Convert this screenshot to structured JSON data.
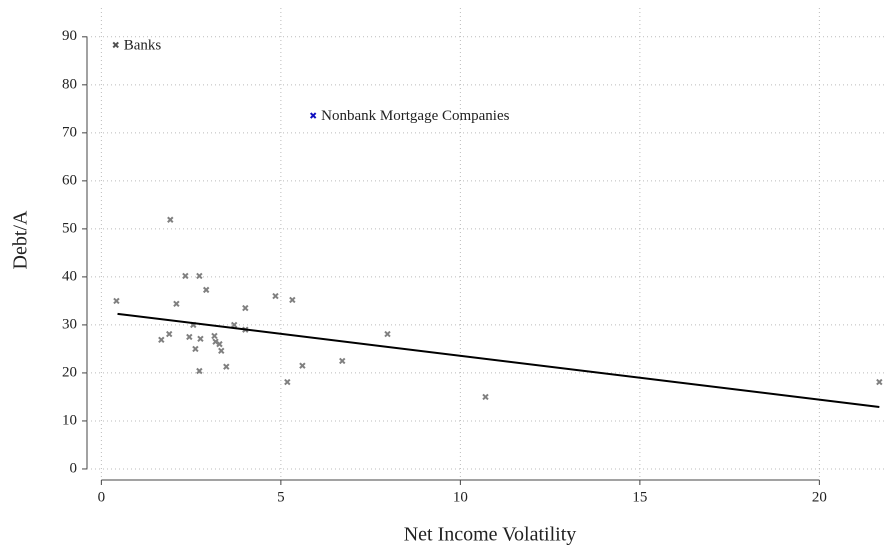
{
  "chart_data": {
    "type": "scatter",
    "x_label": "Net Income Volatility",
    "y_label": "Debt/A",
    "xlim": [
      -0.4,
      21.8
    ],
    "ylim": [
      -2.3,
      96
    ],
    "xticks": [
      0,
      5,
      10,
      15,
      20
    ],
    "yticks": [
      0,
      10,
      20,
      30,
      40,
      50,
      60,
      70,
      80,
      90
    ],
    "grid": true,
    "series": [
      {
        "name": "Banks",
        "color": "#505050",
        "x": [
          0.4
        ],
        "values": [
          88.3
        ]
      },
      {
        "name": "Nonbank Mortgage Companies",
        "color": "#1010c0",
        "x": [
          5.9
        ],
        "values": [
          73.6
        ]
      },
      {
        "color": "#808080",
        "x": [
          0.42,
          1.92,
          2.34,
          2.73,
          2.92,
          2.09,
          1.67,
          1.89,
          2.45,
          2.56,
          2.76,
          2.62,
          2.73,
          3.15,
          3.18,
          3.29,
          3.34,
          3.48,
          3.7,
          4.01,
          4.01,
          4.85,
          5.32,
          5.18,
          5.6,
          6.71,
          7.97,
          10.7,
          21.67
        ],
        "values": [
          35.0,
          51.9,
          40.2,
          40.2,
          37.3,
          34.4,
          26.9,
          28.1,
          27.5,
          30.0,
          27.1,
          25.0,
          20.4,
          27.7,
          26.5,
          26.0,
          24.6,
          21.3,
          30.0,
          33.5,
          29.0,
          36.0,
          35.2,
          18.1,
          21.5,
          22.5,
          28.1,
          15.0,
          18.1
        ]
      }
    ],
    "fit_line": {
      "color": "#000000",
      "x": [
        0.45,
        21.67
      ],
      "values": [
        32.3,
        12.9
      ]
    }
  }
}
